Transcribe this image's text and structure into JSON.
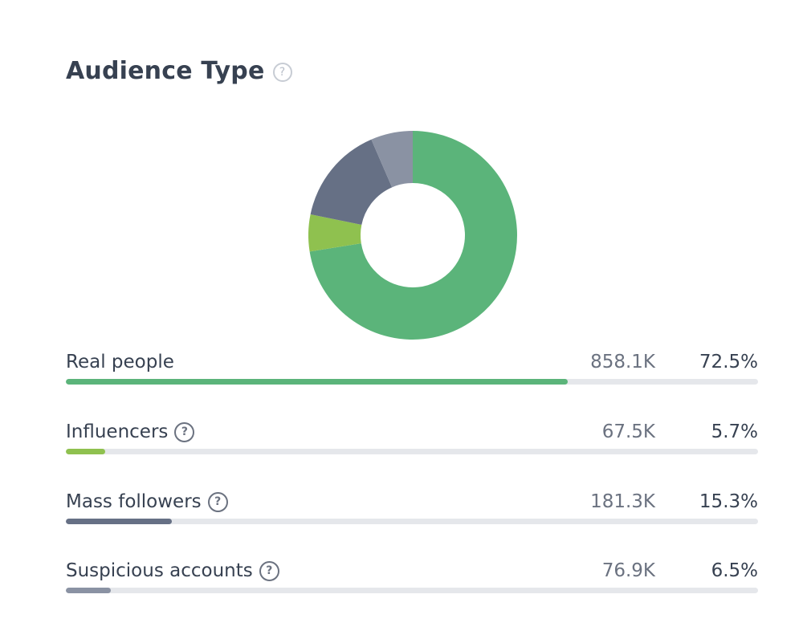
{
  "title": "Audience Type",
  "help_glyph": "?",
  "chart_data": {
    "type": "pie",
    "title": "Audience Type",
    "categories": [
      "Real people",
      "Influencers",
      "Mass followers",
      "Suspicious accounts"
    ],
    "counts": [
      "858.1K",
      "67.5K",
      "181.3K",
      "76.9K"
    ],
    "percent_labels": [
      "72.5%",
      "5.7%",
      "15.3%",
      "6.5%"
    ],
    "values": [
      72.5,
      5.7,
      15.3,
      6.5
    ],
    "colors": [
      "#5bb47a",
      "#8fc14f",
      "#667085",
      "#8a92a3"
    ],
    "has_help": [
      false,
      true,
      true,
      true
    ],
    "legend": "bars-below"
  }
}
